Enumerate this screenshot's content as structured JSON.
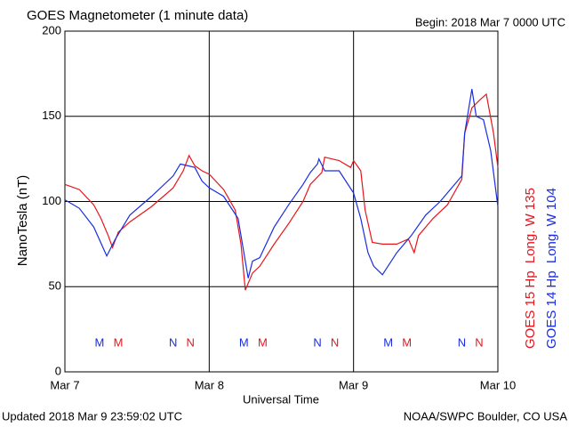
{
  "chart_data": {
    "type": "line",
    "title": "GOES Magnetometer (1 minute data)",
    "subtitle": "Begin:  2018 Mar 7 0000 UTC",
    "ylabel": "NanoTesla (nT)",
    "xlabel": "Universal Time",
    "footer_left": "Updated 2018 Mar  9 23:59:02 UTC",
    "footer_right": "NOAA/SWPC Boulder, CO USA",
    "xlim": [
      0,
      3
    ],
    "xticks": [
      {
        "value": 0,
        "label": "Mar 7"
      },
      {
        "value": 1,
        "label": "Mar 8"
      },
      {
        "value": 2,
        "label": "Mar 9"
      },
      {
        "value": 3,
        "label": "Mar 10"
      }
    ],
    "ylim": [
      0,
      200
    ],
    "yticks": [
      0,
      50,
      100,
      150,
      200
    ],
    "grid": true,
    "series": [
      {
        "name": "GOES 15 Hp  Long. W 135",
        "color": "#e8141c",
        "x": [
          0,
          0.1,
          0.2,
          0.25,
          0.3,
          0.33,
          0.37,
          0.45,
          0.6,
          0.75,
          0.82,
          0.86,
          0.9,
          0.95,
          1.0,
          1.1,
          1.18,
          1.22,
          1.25,
          1.3,
          1.35,
          1.45,
          1.55,
          1.65,
          1.7,
          1.78,
          1.8,
          1.9,
          1.98,
          2.0,
          2.05,
          2.08,
          2.13,
          2.2,
          2.3,
          2.38,
          2.42,
          2.45,
          2.55,
          2.65,
          2.75,
          2.77,
          2.82,
          2.88,
          2.92,
          2.97,
          3.0
        ],
        "values": [
          110,
          107,
          98,
          90,
          80,
          73,
          82,
          88,
          97,
          108,
          118,
          127,
          121,
          118,
          116,
          107,
          95,
          75,
          48,
          58,
          62,
          75,
          87,
          100,
          110,
          117,
          126,
          124,
          120,
          124,
          118,
          95,
          76,
          75,
          75,
          78,
          70,
          80,
          90,
          98,
          113,
          140,
          155,
          160,
          163,
          140,
          120
        ]
      },
      {
        "name": "GOES 14 Hp  Long. W 104",
        "color": "#1a2de0",
        "x": [
          0,
          0.1,
          0.2,
          0.29,
          0.35,
          0.45,
          0.6,
          0.75,
          0.8,
          0.9,
          0.95,
          1.0,
          1.1,
          1.2,
          1.24,
          1.27,
          1.3,
          1.35,
          1.45,
          1.55,
          1.65,
          1.7,
          1.75,
          1.76,
          1.8,
          1.9,
          2.0,
          2.05,
          2.1,
          2.14,
          2.2,
          2.3,
          2.4,
          2.5,
          2.6,
          2.7,
          2.75,
          2.77,
          2.82,
          2.85,
          2.9,
          2.95,
          3.0
        ],
        "values": [
          101,
          96,
          85,
          68,
          78,
          92,
          103,
          115,
          122,
          120,
          112,
          108,
          103,
          90,
          70,
          55,
          65,
          67,
          85,
          98,
          110,
          117,
          122,
          125,
          118,
          118,
          105,
          90,
          70,
          62,
          57,
          70,
          80,
          92,
          100,
          110,
          115,
          140,
          166,
          150,
          148,
          130,
          97
        ]
      }
    ],
    "annotations": [
      {
        "text": "M",
        "x": 0.24,
        "color": "#1a2de0"
      },
      {
        "text": "M",
        "x": 0.37,
        "color": "#e8141c"
      },
      {
        "text": "N",
        "x": 0.75,
        "color": "#1a2de0"
      },
      {
        "text": "N",
        "x": 0.87,
        "color": "#e8141c"
      },
      {
        "text": "M",
        "x": 1.24,
        "color": "#1a2de0"
      },
      {
        "text": "M",
        "x": 1.37,
        "color": "#e8141c"
      },
      {
        "text": "N",
        "x": 1.75,
        "color": "#1a2de0"
      },
      {
        "text": "N",
        "x": 1.87,
        "color": "#e8141c"
      },
      {
        "text": "M",
        "x": 2.24,
        "color": "#1a2de0"
      },
      {
        "text": "M",
        "x": 2.37,
        "color": "#e8141c"
      },
      {
        "text": "N",
        "x": 2.75,
        "color": "#1a2de0"
      },
      {
        "text": "N",
        "x": 2.87,
        "color": "#e8141c"
      }
    ]
  }
}
